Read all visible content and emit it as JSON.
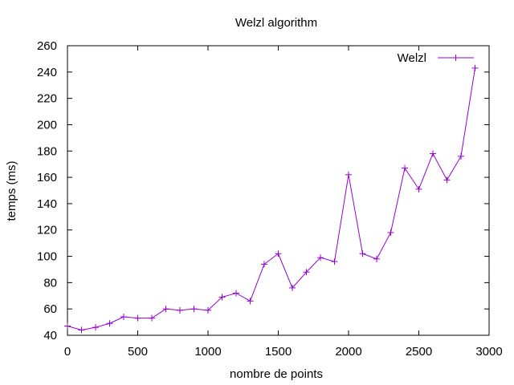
{
  "chart_data": {
    "type": "line",
    "title": "Welzl algorithm",
    "xlabel": "nombre de points",
    "ylabel": "temps (ms)",
    "xlim": [
      0,
      3000
    ],
    "ylim": [
      40,
      260
    ],
    "xticks": [
      0,
      500,
      1000,
      1500,
      2000,
      2500,
      3000
    ],
    "yticks": [
      40,
      60,
      80,
      100,
      120,
      140,
      160,
      180,
      200,
      220,
      240,
      260
    ],
    "grid": false,
    "legend": "top-right",
    "series": [
      {
        "name": "Welzl",
        "color": "#9400d3",
        "marker": "plus",
        "x": [
          0,
          100,
          200,
          300,
          400,
          500,
          600,
          700,
          800,
          900,
          1000,
          1100,
          1200,
          1300,
          1400,
          1500,
          1600,
          1700,
          1800,
          1900,
          2000,
          2100,
          2200,
          2300,
          2400,
          2500,
          2600,
          2700,
          2800,
          2900
        ],
        "y": [
          47,
          44,
          46,
          49,
          54,
          53,
          53,
          60,
          59,
          60,
          59,
          69,
          72,
          66,
          94,
          102,
          76,
          88,
          99,
          96,
          162,
          102,
          98,
          118,
          167,
          151,
          178,
          158,
          176,
          243
        ]
      }
    ]
  }
}
